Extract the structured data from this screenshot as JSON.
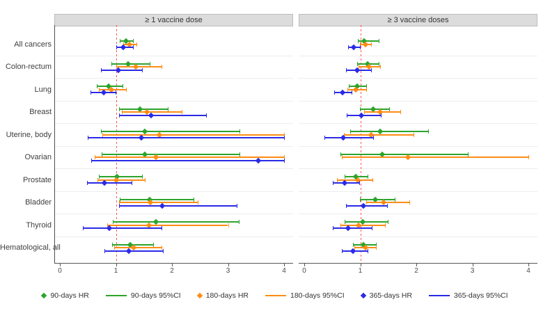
{
  "chart_data": {
    "type": "forest",
    "xlim": [
      0,
      4
    ],
    "x_tick_values": [
      0,
      1,
      2,
      3,
      4
    ],
    "x_tick_labels": [
      "0",
      "1",
      "2",
      "3",
      "4"
    ],
    "reference_line": 1,
    "grid": "row-separators",
    "categories": [
      "All cancers",
      "Colon-rectum",
      "Lung",
      "Breast",
      "Uterine, body",
      "Ovarian",
      "Prostate",
      "Bladder",
      "Thyroid",
      "Hematological, all"
    ],
    "series_colors": {
      "90-days": "#2ca42c",
      "180-days": "#ff8c14",
      "365-days": "#2a2ae6"
    },
    "reference_line_color": "#ff5555",
    "panels": [
      {
        "title": "≥ 1 vaccine dose",
        "series": [
          {
            "name": "90-days",
            "hr": [
              1.18,
              1.22,
              0.87,
              1.43,
              1.52,
              1.52,
              1.02,
              1.6,
              1.71,
              1.25
            ],
            "ci_lo": [
              1.07,
              0.92,
              0.66,
              1.05,
              0.73,
              0.74,
              0.7,
              1.07,
              0.95,
              0.93
            ],
            "ci_hi": [
              1.31,
              1.6,
              1.12,
              1.93,
              3.2,
              3.2,
              1.47,
              2.38,
              3.19,
              1.67
            ]
          },
          {
            "name": "180-days",
            "hr": [
              1.24,
              1.36,
              0.92,
              1.55,
              1.78,
              1.71,
              1.01,
              1.62,
              1.59,
              1.32
            ],
            "ci_lo": [
              1.13,
              1.01,
              0.69,
              1.1,
              0.76,
              0.62,
              0.67,
              1.06,
              0.84,
              0.97
            ],
            "ci_hi": [
              1.37,
              1.81,
              1.18,
              2.17,
              4.0,
              4.0,
              1.51,
              2.46,
              3.0,
              1.81
            ]
          },
          {
            "name": "365-days",
            "hr": [
              1.13,
              1.04,
              0.78,
              1.63,
              1.45,
              3.54,
              0.79,
              1.83,
              0.88,
              1.23
            ],
            "ci_lo": [
              1.0,
              0.73,
              0.55,
              1.05,
              0.5,
              0.56,
              0.48,
              1.05,
              0.41,
              0.8
            ],
            "ci_hi": [
              1.31,
              1.46,
              0.99,
              2.61,
              4.0,
              4.0,
              1.28,
              3.16,
              1.81,
              1.84
            ]
          }
        ]
      },
      {
        "title": "≥ 3 vaccine doses",
        "series": [
          {
            "name": "90-days",
            "hr": [
              1.07,
              1.13,
              0.94,
              1.23,
              1.36,
              1.39,
              0.92,
              1.27,
              1.04,
              1.05
            ],
            "ci_lo": [
              0.96,
              0.95,
              0.8,
              0.99,
              0.82,
              0.65,
              0.72,
              0.99,
              0.72,
              0.87
            ],
            "ci_hi": [
              1.33,
              1.33,
              1.11,
              1.52,
              2.21,
              2.92,
              1.13,
              1.62,
              1.49,
              1.28
            ]
          },
          {
            "name": "180-days",
            "hr": [
              1.09,
              1.16,
              0.92,
              1.35,
              1.19,
              1.85,
              0.96,
              1.42,
              0.97,
              1.09
            ],
            "ci_lo": [
              0.99,
              0.97,
              0.77,
              1.07,
              0.71,
              0.67,
              0.58,
              1.1,
              0.65,
              0.89
            ],
            "ci_hi": [
              1.19,
              1.35,
              1.1,
              1.71,
              1.95,
              4.0,
              1.22,
              1.88,
              1.44,
              1.28
            ]
          },
          {
            "name": "365-days",
            "hr": [
              0.88,
              0.94,
              0.68,
              1.02,
              0.69,
              null,
              0.72,
              1.06,
              0.78,
              0.87
            ],
            "ci_lo": [
              0.78,
              0.75,
              0.53,
              0.76,
              0.36,
              null,
              0.51,
              0.75,
              0.51,
              0.67
            ],
            "ci_hi": [
              0.99,
              1.19,
              0.84,
              1.37,
              1.23,
              null,
              0.98,
              1.48,
              1.2,
              1.13
            ]
          }
        ]
      }
    ]
  },
  "legend": {
    "items": [
      {
        "series": "90-days",
        "glyph": "diamond",
        "label": "90-days HR"
      },
      {
        "series": "90-days",
        "glyph": "line",
        "label": "90-days 95%CI"
      },
      {
        "series": "180-days",
        "glyph": "diamond",
        "label": "180-days HR"
      },
      {
        "series": "180-days",
        "glyph": "line",
        "label": "180-days 95%CI"
      },
      {
        "series": "365-days",
        "glyph": "diamond",
        "label": "365-days HR"
      },
      {
        "series": "365-days",
        "glyph": "line",
        "label": "365-days 95%CI"
      }
    ]
  }
}
